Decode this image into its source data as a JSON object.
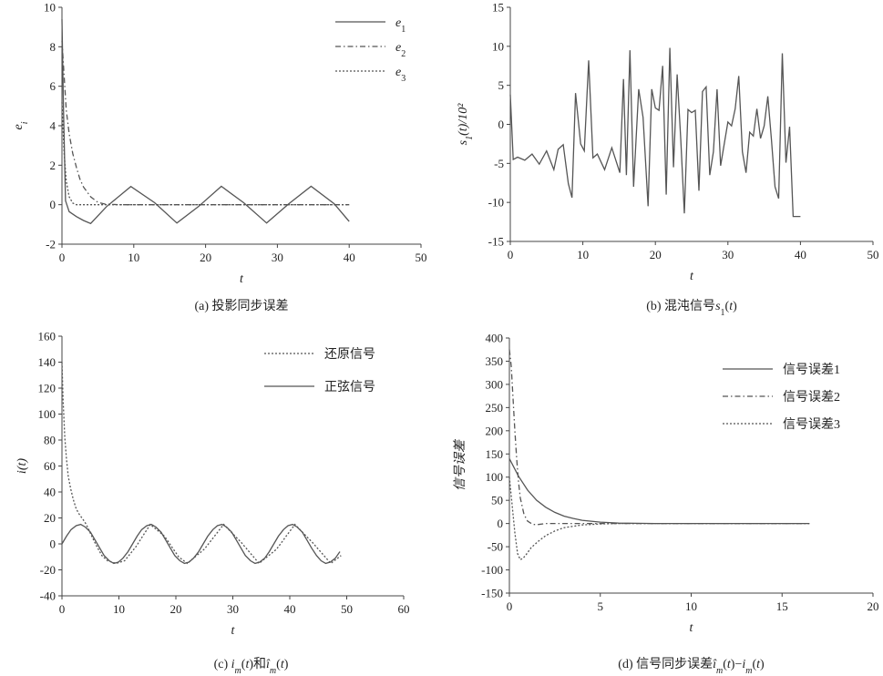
{
  "chart_data": [
    {
      "type": "line",
      "caption": "(a) 投影同步误差",
      "xlabel": "t",
      "ylabel": "e_i",
      "xlim": [
        0,
        50
      ],
      "ylim": [
        -2,
        10
      ],
      "xticks": [
        "0",
        "10",
        "20",
        "30",
        "40",
        "50"
      ],
      "yticks": [
        "-2",
        "0",
        "2",
        "4",
        "6",
        "8",
        "10"
      ],
      "legend_position": "top-right",
      "series": [
        {
          "name": "e1",
          "style": "solid",
          "x": [
            0,
            0.2,
            0.5,
            1,
            2,
            3,
            4,
            6.2,
            9.6,
            12.9,
            16,
            19,
            22.2,
            25.3,
            28.5,
            31.6,
            34.7,
            37.9,
            40
          ],
          "y": [
            9.4,
            5,
            0.2,
            -0.35,
            -0.6,
            -0.8,
            -0.95,
            -0.1,
            0.92,
            0.1,
            -0.93,
            -0.1,
            0.93,
            0.1,
            -0.93,
            0.05,
            0.93,
            0.05,
            -0.85
          ]
        },
        {
          "name": "e2",
          "style": "dashdot",
          "x": [
            0,
            0.3,
            0.6,
            1,
            1.5,
            2,
            2.5,
            3,
            4,
            5,
            6,
            8,
            10,
            40
          ],
          "y": [
            8.3,
            6.5,
            4.8,
            3.6,
            2.6,
            1.9,
            1.3,
            0.9,
            0.4,
            0.12,
            0.03,
            0,
            0,
            0
          ]
        },
        {
          "name": "e3",
          "style": "dotted",
          "x": [
            0,
            0.3,
            0.6,
            1,
            1.5,
            2,
            40
          ],
          "y": [
            5.2,
            2.6,
            1.2,
            0.4,
            0.08,
            0,
            0
          ]
        }
      ]
    },
    {
      "type": "line",
      "caption": "(b) 混沌信号s1(t)",
      "xlabel": "t",
      "ylabel": "s1(t)/10²",
      "xlim": [
        0,
        50
      ],
      "ylim": [
        -15,
        15
      ],
      "xticks": [
        "0",
        "10",
        "20",
        "30",
        "40",
        "50"
      ],
      "yticks": [
        "-15",
        "-10",
        "-5",
        "0",
        "5",
        "10",
        "15"
      ],
      "series": [
        {
          "name": "",
          "style": "solid",
          "x": [
            0,
            0.4,
            1,
            2,
            3,
            4,
            5,
            6,
            6.6,
            7.3,
            8,
            8.5,
            9,
            9.7,
            10.2,
            10.8,
            11.4,
            12,
            13,
            14,
            15.1,
            15.6,
            16,
            16.5,
            17,
            17.7,
            18.3,
            19,
            19.5,
            20,
            20.5,
            21,
            21.5,
            22,
            22.5,
            23,
            23.5,
            24,
            24.5,
            25,
            25.5,
            26,
            26.5,
            27,
            27.5,
            28,
            28.5,
            29,
            29.5,
            30,
            30.5,
            31,
            31.5,
            32,
            32.5,
            33,
            33.5,
            34,
            34.5,
            35,
            35.5,
            36,
            36.5,
            37,
            37.5,
            38,
            38.5,
            39,
            39.5,
            40
          ],
          "y": [
            3.8,
            -4.5,
            -4.2,
            -4.6,
            -3.8,
            -5.1,
            -3.4,
            -5.8,
            -3.2,
            -2.6,
            -7.6,
            -9.4,
            4,
            -2.5,
            -3.4,
            8.2,
            -4.3,
            -3.8,
            -5.8,
            -3,
            -6.2,
            5.8,
            -6.5,
            9.5,
            -8,
            4.5,
            0.9,
            -10.5,
            4.5,
            2.1,
            1.8,
            7.5,
            -9,
            9.8,
            -5.5,
            6.4,
            -2,
            -11.4,
            1.9,
            1.5,
            1.8,
            -8.5,
            4.2,
            4.8,
            -6.5,
            -3.5,
            4.5,
            -5.3,
            -2.5,
            0.3,
            -0.2,
            2,
            6.2,
            -3.5,
            -6.2,
            -1,
            -1.5,
            2,
            -1.8,
            -0.2,
            3.6,
            -2,
            -8,
            -9.5,
            9.1,
            -4.9,
            -0.3,
            -11.8,
            -11.8,
            -11.8
          ]
        }
      ]
    },
    {
      "type": "line",
      "caption": "(c) im(t)和îm(t)",
      "xlabel": "t",
      "ylabel": "i(t)",
      "xlim": [
        0,
        60
      ],
      "ylim": [
        -40,
        160
      ],
      "xticks": [
        "0",
        "10",
        "20",
        "30",
        "40",
        "50",
        "60"
      ],
      "yticks": [
        "-40",
        "-20",
        "0",
        "20",
        "40",
        "60",
        "80",
        "100",
        "120",
        "140",
        "160"
      ],
      "legend_position": "top-right",
      "series": [
        {
          "name": "还原信号",
          "style": "dotted",
          "x": [
            0,
            0.2,
            0.5,
            0.8,
            1.1,
            1.5,
            2,
            2.5,
            3,
            3.5,
            4,
            4.5,
            5,
            6,
            7,
            8,
            9.5,
            11,
            13,
            15.5,
            18,
            20.5,
            22,
            25,
            28.4,
            31.5,
            34.6,
            37.7,
            40.9,
            44,
            47.2,
            49
          ],
          "y": [
            140,
            110,
            82,
            65,
            52,
            43,
            34,
            27,
            23,
            20,
            17,
            13,
            8,
            -1,
            -9,
            -13,
            -15,
            -13,
            -2,
            15,
            6,
            -10,
            -15,
            -4,
            15,
            1,
            -15,
            -4,
            15,
            1,
            -15,
            -9
          ]
        },
        {
          "name": "正弦信号",
          "style": "solid",
          "x": [
            0,
            0.8,
            1.6,
            2.5,
            3.3,
            4.1,
            5,
            5.8,
            6.6,
            7.4,
            8.3,
            9.1,
            9.9,
            10.7,
            11.6,
            12.4,
            13.2,
            14,
            14.9,
            15.7,
            16.5,
            17.4,
            18.2,
            19,
            19.8,
            20.7,
            21.5,
            22.3,
            23.1,
            24,
            24.8,
            25.6,
            26.5,
            27.3,
            28.1,
            28.9,
            29.8,
            30.6,
            31.4,
            32.2,
            33.1,
            33.9,
            34.7,
            35.6,
            36.4,
            37.2,
            38,
            38.9,
            39.7,
            40.5,
            41.3,
            42.2,
            43,
            43.8,
            44.7,
            45.5,
            46.3,
            47.1,
            48,
            48.8
          ],
          "y": [
            0,
            6,
            11,
            14,
            15,
            13,
            9,
            3,
            -3,
            -9,
            -13,
            -15,
            -14,
            -11,
            -6,
            0,
            6,
            11,
            14,
            15,
            13,
            9,
            3,
            -3,
            -9,
            -13,
            -15,
            -14,
            -11,
            -6,
            0,
            6,
            11,
            14,
            15,
            13,
            9,
            3,
            -3,
            -9,
            -13,
            -15,
            -14,
            -11,
            -6,
            0,
            6,
            11,
            14,
            15,
            13,
            9,
            3,
            -3,
            -9,
            -13,
            -15,
            -14,
            -11,
            -6
          ]
        }
      ]
    },
    {
      "type": "line",
      "caption": "(d) 信号同步误差îm(t)−im(t)",
      "xlabel": "t",
      "ylabel": "信号误差",
      "xlim": [
        0,
        20
      ],
      "ylim": [
        -150,
        400
      ],
      "xticks": [
        "0",
        "5",
        "10",
        "15",
        "20"
      ],
      "yticks": [
        "-150",
        "-100",
        "-50",
        "0",
        "50",
        "100",
        "150",
        "200",
        "250",
        "300",
        "350",
        "400"
      ],
      "legend_position": "top-right",
      "series": [
        {
          "name": "信号误差1",
          "style": "solid",
          "x": [
            0,
            0.5,
            1,
            1.5,
            2,
            2.5,
            3,
            3.5,
            4,
            5,
            6,
            8,
            16.5
          ],
          "y": [
            140,
            102,
            72,
            50,
            35,
            24,
            16,
            11,
            7,
            3,
            1,
            0,
            0
          ]
        },
        {
          "name": "信号误差2",
          "style": "dashdot",
          "x": [
            0,
            0.1,
            0.2,
            0.3,
            0.4,
            0.5,
            0.6,
            0.8,
            1,
            1.3,
            1.6,
            2,
            3,
            16.5
          ],
          "y": [
            375,
            340,
            270,
            200,
            140,
            90,
            55,
            20,
            5,
            -2,
            -2,
            0,
            0,
            0
          ]
        },
        {
          "name": "信号误差3",
          "style": "dotted",
          "x": [
            0,
            0.15,
            0.3,
            0.45,
            0.6,
            0.75,
            0.9,
            1.2,
            1.6,
            2,
            2.5,
            3,
            4,
            5,
            6,
            16.5
          ],
          "y": [
            100,
            40,
            -20,
            -65,
            -78,
            -75,
            -68,
            -52,
            -38,
            -26,
            -16,
            -9,
            -3,
            -1,
            0,
            0
          ]
        }
      ]
    }
  ]
}
